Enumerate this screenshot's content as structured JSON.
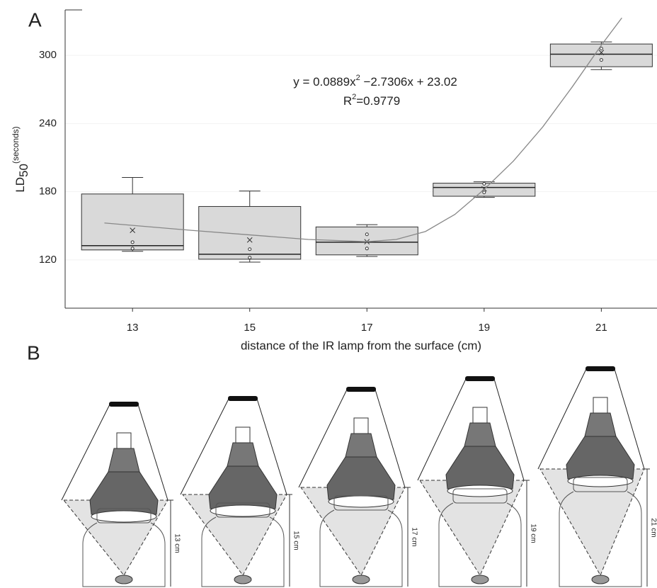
{
  "chart_data": {
    "type": "box",
    "y_label": "LD",
    "y_label_sub": "50",
    "y_label_sup": "(seconds)",
    "x_label": "distance of the IR lamp from the surface (cm)",
    "equation": [
      "y = 0.0889x",
      "2",
      " −2.7306x + 23.02"
    ],
    "r_squared": [
      "R",
      "2",
      "=0.9779"
    ],
    "color": "#d9d9d9",
    "grid": true,
    "xlim": [
      11.85,
      21.95
    ],
    "xticks": [
      13,
      15,
      17,
      19,
      21
    ],
    "ylim": [
      77.5,
      340
    ],
    "yticks": [
      120,
      180,
      240,
      300
    ],
    "boxes": [
      {
        "x": 13,
        "whisker_low": 127.5,
        "q1": 128.75,
        "median": 132.5,
        "q3": 178,
        "whisker_high": 192.5,
        "mean": 146,
        "points": [
          135.6,
          130
        ]
      },
      {
        "x": 15,
        "whisker_low": 118,
        "q1": 120.6,
        "median": 125,
        "q3": 167,
        "whisker_high": 180.6,
        "mean": 137.5,
        "points": [
          129.4,
          122
        ]
      },
      {
        "x": 17,
        "whisker_low": 123,
        "q1": 124.4,
        "median": 135.6,
        "q3": 149,
        "whisker_high": 151,
        "mean": 136,
        "points": [
          142.5,
          130
        ]
      },
      {
        "x": 19,
        "whisker_low": 175,
        "q1": 176,
        "median": 183.75,
        "q3": 187.5,
        "whisker_high": 188.75,
        "mean": 182.5,
        "points": [
          187,
          179.4
        ]
      },
      {
        "x": 21,
        "whisker_low": 287.5,
        "q1": 290,
        "median": 301,
        "q3": 310,
        "whisker_high": 311.9,
        "mean": 302.5,
        "points": [
          306,
          296
        ]
      }
    ],
    "trend": {
      "x": [
        12.52,
        14,
        15,
        16,
        17,
        17.5,
        18,
        18.5,
        19,
        19.5,
        20,
        20.5,
        21,
        21.35
      ],
      "y": [
        152.5,
        146,
        142,
        138,
        136,
        138,
        145,
        160,
        182,
        207,
        237,
        272,
        309,
        333
      ]
    }
  },
  "panel_labels": [
    "A",
    "B"
  ],
  "illustrations": [
    {
      "height_label": "13 cm"
    },
    {
      "height_label": "15 cm"
    },
    {
      "height_label": "17 cm"
    },
    {
      "height_label": "19 cm"
    },
    {
      "height_label": "21 cm"
    }
  ]
}
